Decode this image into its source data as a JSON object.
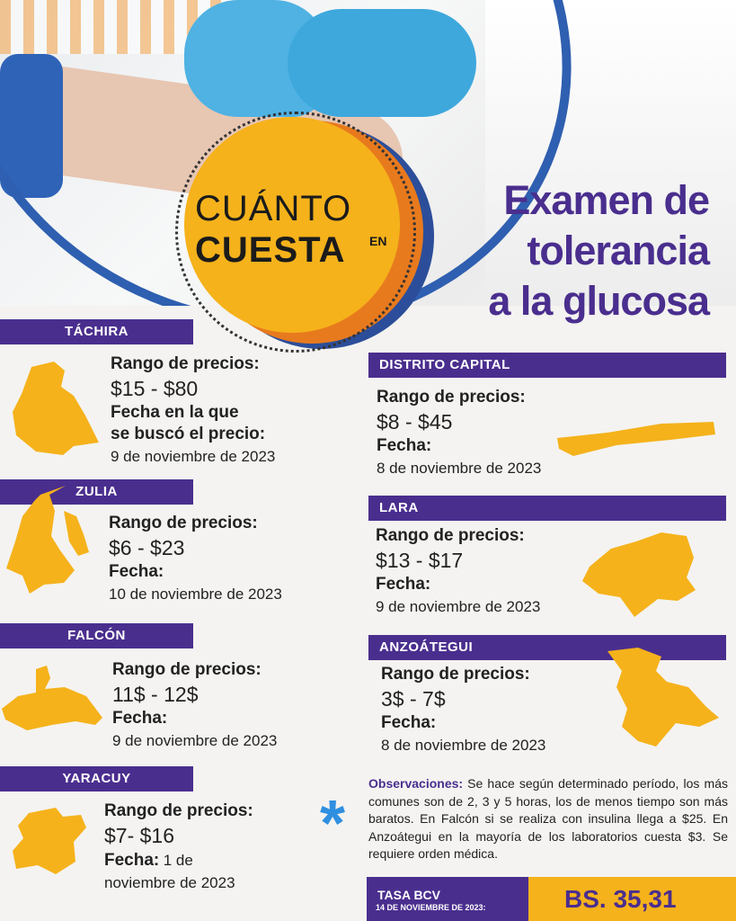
{
  "badge": {
    "line1": "CUÁNTO",
    "line2": "CUESTA",
    "en": "EN"
  },
  "title": {
    "line1": "Examen de",
    "line2": "tolerancia",
    "line3": "a la glucosa"
  },
  "states": [
    {
      "name": "TÁCHIRA",
      "range_label": "Rango de precios:",
      "price": "$15 - $80",
      "date_label_1": "Fecha en la que",
      "date_label_2": "se buscó el precio:",
      "date": "9 de noviembre de 2023"
    },
    {
      "name": "ZULIA",
      "range_label": "Rango de precios:",
      "price": "$6 - $23",
      "date_label": "Fecha:",
      "date": "10 de noviembre de 2023"
    },
    {
      "name": "FALCÓN",
      "range_label": "Rango de precios:",
      "price": "11$ - 12$",
      "date_label": "Fecha:",
      "date": "9 de noviembre de 2023"
    },
    {
      "name": "YARACUY",
      "range_label": "Rango de precios:",
      "price": "$7- $16",
      "date_label": "Fecha:",
      "date_inline": "1 de",
      "date": "noviembre de 2023"
    },
    {
      "name": "DISTRITO CAPITAL",
      "range_label": "Rango de precios:",
      "price": "$8 - $45",
      "date_label": "Fecha:",
      "date": "8 de noviembre de 2023"
    },
    {
      "name": "LARA",
      "range_label": "Rango de precios:",
      "price": "$13 - $17",
      "date_label": "Fecha:",
      "date": "9 de noviembre de 2023"
    },
    {
      "name": "ANZOÁTEGUI",
      "range_label": "Rango de precios:",
      "price": "3$ - 7$",
      "date_label": "Fecha:",
      "date": "8 de noviembre de 2023"
    }
  ],
  "observations": {
    "label": "Observaciones:",
    "text": " Se hace según determinado período, los más comunes son de 2, 3 y 5 horas, los de menos tiempo son más baratos. En Falcón si se realiza con insulina llega a $25. En Anzoátegui en la mayoría de los laboratorios cuesta $3. Se requiere orden médica.",
    "icon": "asterisk-icon"
  },
  "bcv": {
    "label": "TASA BCV",
    "date": "14 DE NOVIEMBRE DE 2023:",
    "value": "BS. 35,31"
  },
  "colors": {
    "purple": "#4a2e8e",
    "yellow": "#f5b21b",
    "orange": "#e87a1e",
    "blue": "#2c4e9a"
  }
}
